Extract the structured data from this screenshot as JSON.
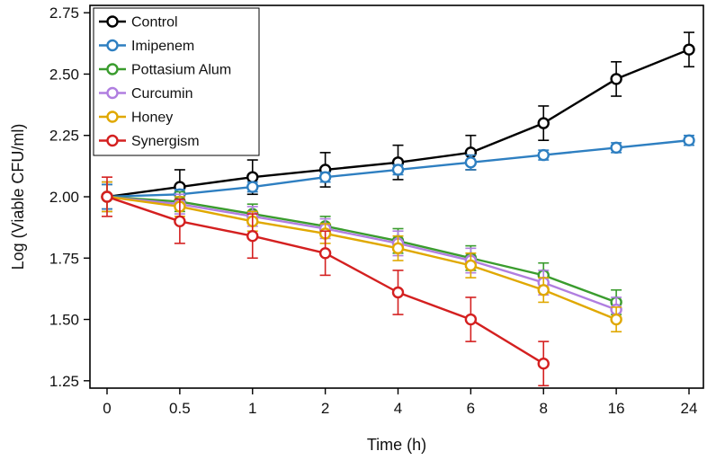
{
  "chart_data": {
    "type": "line",
    "title": "",
    "xlabel": "Time (h)",
    "ylabel": "Log (Viable CFU/ml)",
    "x_categories": [
      "0",
      "0.5",
      "1",
      "2",
      "4",
      "6",
      "8",
      "16",
      "24"
    ],
    "ylim": [
      1.22,
      2.78
    ],
    "y_ticks": [
      "1.25",
      "1.50",
      "1.75",
      "2.00",
      "2.25",
      "2.50",
      "2.75"
    ],
    "y_tick_values": [
      1.25,
      1.5,
      1.75,
      2.0,
      2.25,
      2.5,
      2.75
    ],
    "grid": false,
    "legend_position": "top-left",
    "series": [
      {
        "name": "Control",
        "color": "#000000",
        "values": [
          2.0,
          2.04,
          2.08,
          2.11,
          2.14,
          2.18,
          2.3,
          2.48,
          2.6
        ],
        "errors": [
          0.05,
          0.07,
          0.07,
          0.07,
          0.07,
          0.07,
          0.07,
          0.07,
          0.07
        ]
      },
      {
        "name": "Imipenem",
        "color": "#2e7fc1",
        "values": [
          2.0,
          2.01,
          2.04,
          2.08,
          2.11,
          2.14,
          2.17,
          2.2,
          2.23
        ],
        "errors": [
          0.05,
          0.02,
          0.02,
          0.02,
          0.02,
          0.03,
          0.02,
          0.02,
          0.02
        ]
      },
      {
        "name": "Pottasium Alum",
        "color": "#3a9c2e",
        "values": [
          2.0,
          1.98,
          1.93,
          1.88,
          1.82,
          1.75,
          1.68,
          1.57,
          null
        ],
        "errors": [
          0.06,
          0.04,
          0.04,
          0.04,
          0.05,
          0.05,
          0.05,
          0.05,
          null
        ]
      },
      {
        "name": "Curcumin",
        "color": "#b07ee0",
        "values": [
          2.0,
          1.97,
          1.92,
          1.87,
          1.81,
          1.74,
          1.65,
          1.54,
          null
        ],
        "errors": [
          0.06,
          0.04,
          0.04,
          0.04,
          0.05,
          0.05,
          0.05,
          0.05,
          null
        ]
      },
      {
        "name": "Honey",
        "color": "#e0a800",
        "values": [
          2.0,
          1.96,
          1.9,
          1.85,
          1.79,
          1.72,
          1.62,
          1.5,
          null
        ],
        "errors": [
          0.06,
          0.04,
          0.04,
          0.04,
          0.05,
          0.05,
          0.05,
          0.05,
          null
        ]
      },
      {
        "name": "Synergism",
        "color": "#d42020",
        "values": [
          2.0,
          1.9,
          1.84,
          1.77,
          1.61,
          1.5,
          1.32,
          null,
          null
        ],
        "errors": [
          0.08,
          0.09,
          0.09,
          0.09,
          0.09,
          0.09,
          0.09,
          null,
          null
        ]
      }
    ]
  }
}
